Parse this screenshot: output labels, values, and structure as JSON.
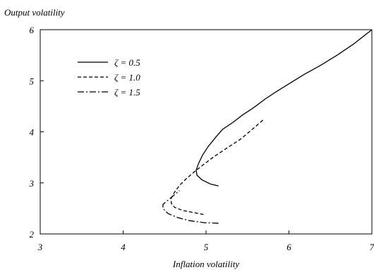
{
  "chart_data": {
    "type": "line",
    "ylabel": "Output volatility",
    "xlabel": "Inflation volatility",
    "xlim": [
      3,
      7
    ],
    "ylim": [
      2,
      6
    ],
    "xticks": [
      "3",
      "4",
      "5",
      "6",
      "7"
    ],
    "yticks": [
      "2",
      "3",
      "4",
      "5",
      "6"
    ],
    "legend_placement": "upper-left",
    "grid": false,
    "series": [
      {
        "name": "ζ = 0.5",
        "style": "solid",
        "points": [
          [
            5.15,
            2.94
          ],
          [
            5.05,
            2.98
          ],
          [
            4.95,
            3.06
          ],
          [
            4.89,
            3.15
          ],
          [
            4.88,
            3.25
          ],
          [
            4.91,
            3.38
          ],
          [
            4.96,
            3.55
          ],
          [
            5.03,
            3.72
          ],
          [
            5.12,
            3.9
          ],
          [
            5.2,
            4.05
          ],
          [
            5.32,
            4.18
          ],
          [
            5.44,
            4.33
          ],
          [
            5.58,
            4.48
          ],
          [
            5.72,
            4.65
          ],
          [
            5.86,
            4.8
          ],
          [
            6.0,
            4.94
          ],
          [
            6.18,
            5.12
          ],
          [
            6.38,
            5.3
          ],
          [
            6.58,
            5.5
          ],
          [
            6.78,
            5.72
          ],
          [
            7.0,
            6.0
          ]
        ]
      },
      {
        "name": "ζ = 1.0",
        "style": "dashed",
        "points": [
          [
            4.97,
            2.38
          ],
          [
            4.85,
            2.42
          ],
          [
            4.72,
            2.46
          ],
          [
            4.62,
            2.52
          ],
          [
            4.58,
            2.6
          ],
          [
            4.58,
            2.7
          ],
          [
            4.62,
            2.82
          ],
          [
            4.68,
            2.95
          ],
          [
            4.76,
            3.08
          ],
          [
            4.86,
            3.22
          ],
          [
            4.97,
            3.36
          ],
          [
            5.1,
            3.52
          ],
          [
            5.25,
            3.68
          ],
          [
            5.42,
            3.86
          ],
          [
            5.58,
            4.08
          ],
          [
            5.7,
            4.25
          ]
        ]
      },
      {
        "name": "ζ = 1.5",
        "style": "dashdot",
        "points": [
          [
            5.15,
            2.21
          ],
          [
            4.98,
            2.22
          ],
          [
            4.8,
            2.26
          ],
          [
            4.66,
            2.32
          ],
          [
            4.54,
            2.4
          ],
          [
            4.48,
            2.5
          ],
          [
            4.48,
            2.58
          ],
          [
            4.54,
            2.66
          ],
          [
            4.62,
            2.77
          ],
          [
            4.68,
            2.85
          ]
        ]
      }
    ]
  }
}
